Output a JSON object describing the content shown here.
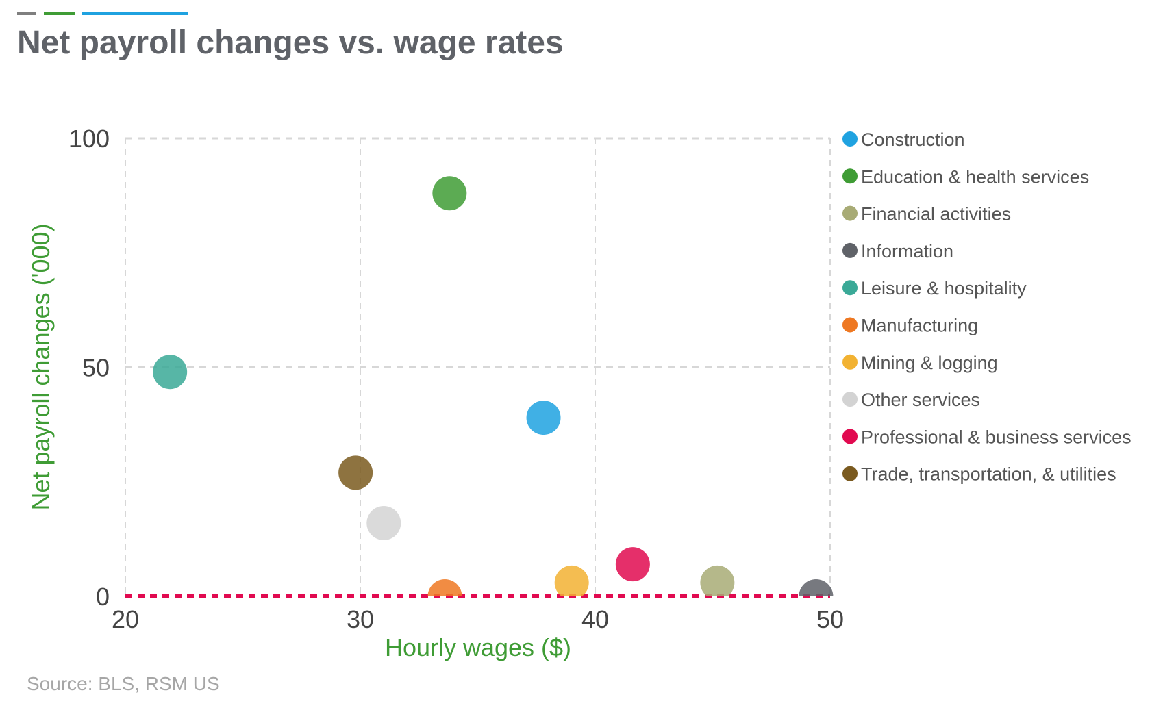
{
  "colors": {
    "title": "#5f6268",
    "axis_label": "#3f9c35",
    "tick": "#444444",
    "grid": "#d7d7d7",
    "zero_line": "#e10a50",
    "source": "#a6a6a6",
    "legend_text": "#555555",
    "accent_bars": [
      "#7f7f7f",
      "#3f9c35",
      "#1fa2e0"
    ]
  },
  "source": "Source: BLS, RSM US",
  "chart_data": {
    "type": "scatter",
    "title": "Net payroll changes vs. wage rates",
    "xlabel": "Hourly wages ($)",
    "ylabel": "Net payroll changes ('000)",
    "xlim": [
      20,
      50
    ],
    "ylim": [
      0,
      100
    ],
    "xticks": [
      "20",
      "30",
      "40",
      "50"
    ],
    "yticks": [
      "0",
      "50",
      "100"
    ],
    "grid": true,
    "reference_line": {
      "y": 0,
      "style": "dashed"
    },
    "legend_position": "right",
    "series": [
      {
        "name": "Construction",
        "color": "#1fa2e0",
        "x": 37.8,
        "y": 39
      },
      {
        "name": "Education & health services",
        "color": "#3f9c35",
        "x": 33.8,
        "y": 88
      },
      {
        "name": "Financial activities",
        "color": "#a8ab75",
        "x": 45.2,
        "y": 3
      },
      {
        "name": "Information",
        "color": "#5f6268",
        "x": 49.4,
        "y": 0
      },
      {
        "name": "Leisure & hospitality",
        "color": "#3aa997",
        "x": 21.9,
        "y": 49
      },
      {
        "name": "Manufacturing",
        "color": "#ee7822",
        "x": 33.6,
        "y": 0
      },
      {
        "name": "Mining & logging",
        "color": "#f2b232",
        "x": 39.0,
        "y": 3
      },
      {
        "name": "Other services",
        "color": "#d3d3d3",
        "x": 31.0,
        "y": 16
      },
      {
        "name": "Professional & business services",
        "color": "#e10a50",
        "x": 41.6,
        "y": 7
      },
      {
        "name": "Trade, transportation, & utilities",
        "color": "#7a5a1f",
        "x": 29.8,
        "y": 27
      }
    ]
  }
}
